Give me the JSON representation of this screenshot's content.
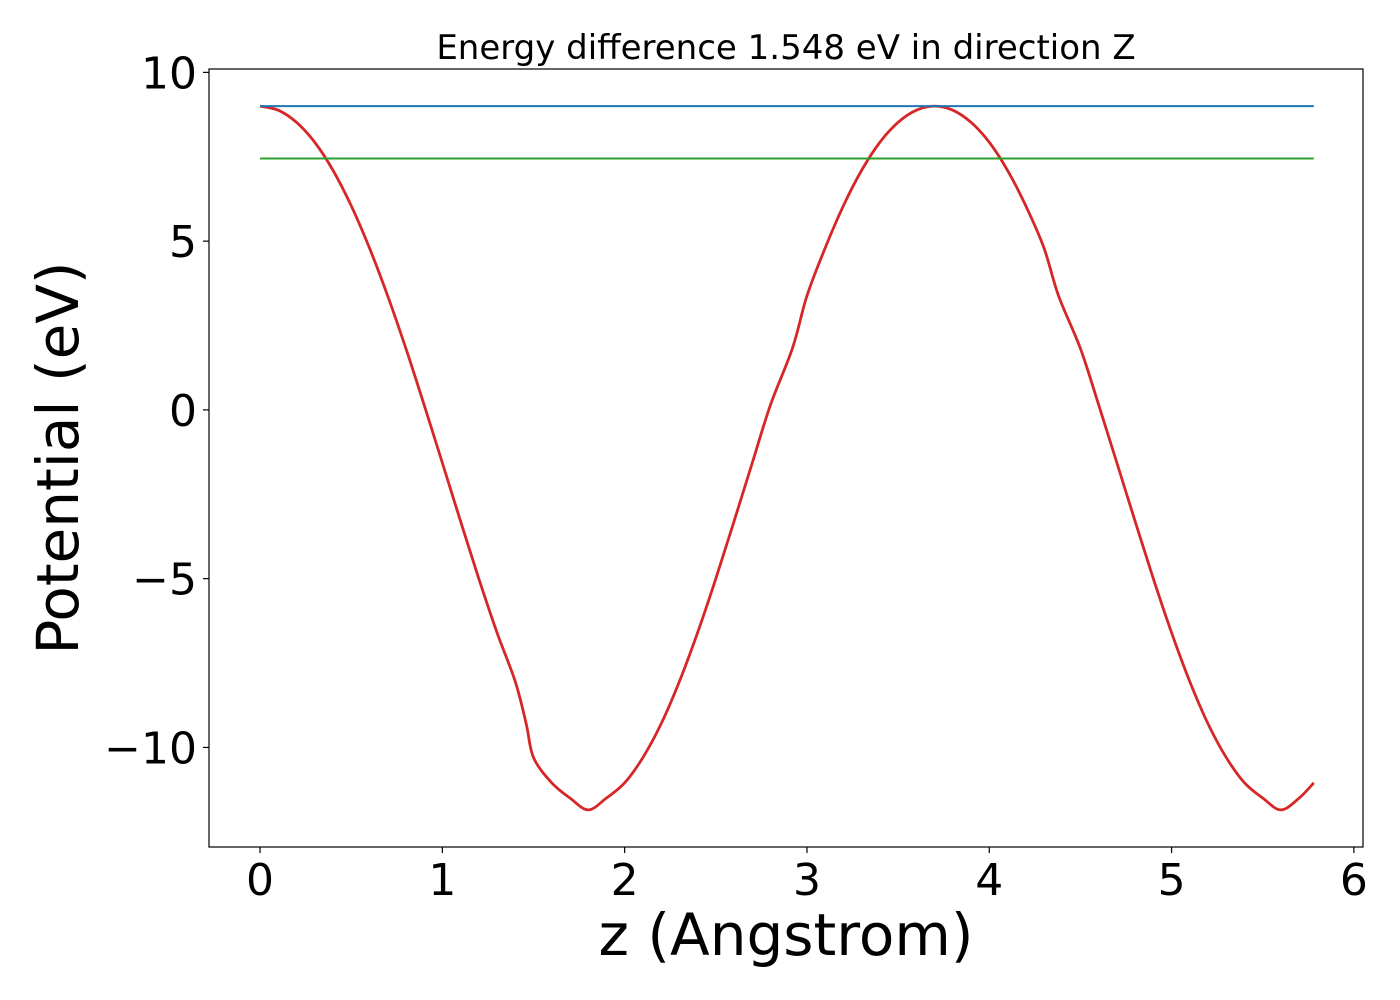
{
  "chart_data": {
    "type": "line",
    "title": "Energy difference 1.548 eV in direction Z",
    "xlabel": "z (Angstrom)",
    "ylabel": "Potential (eV)",
    "xlim": [
      -0.28,
      6.05
    ],
    "ylim": [
      -12.95,
      10.1
    ],
    "x_ticks": [
      0,
      1,
      2,
      3,
      4,
      5,
      6
    ],
    "y_ticks": [
      -10,
      -5,
      0,
      5,
      10
    ],
    "x_tick_labels": [
      "0",
      "1",
      "2",
      "3",
      "4",
      "5",
      "6"
    ],
    "y_tick_labels": [
      "−10",
      "−5",
      "0",
      "5",
      "10"
    ],
    "grid": false,
    "legend": "none",
    "series": [
      {
        "color": "#d62728",
        "x": [
          0.0,
          0.1,
          0.2,
          0.3,
          0.4,
          0.5,
          0.6,
          0.7,
          0.8,
          0.9,
          1.0,
          1.1,
          1.2,
          1.3,
          1.4,
          1.46,
          1.5,
          1.6,
          1.7,
          1.8,
          1.9,
          2.0,
          2.1,
          2.2,
          2.3,
          2.4,
          2.5,
          2.6,
          2.7,
          2.8,
          2.92,
          3.0,
          3.1,
          3.2,
          3.3,
          3.4,
          3.5,
          3.6,
          3.7,
          3.8,
          3.9,
          4.0,
          4.1,
          4.2,
          4.3,
          4.38,
          4.5,
          4.6,
          4.7,
          4.8,
          4.9,
          5.0,
          5.1,
          5.2,
          5.3,
          5.4,
          5.5,
          5.6,
          5.7,
          5.78
        ],
        "y": [
          9.0,
          8.88,
          8.52,
          7.93,
          7.1,
          6.05,
          4.8,
          3.38,
          1.82,
          0.15,
          -1.57,
          -3.3,
          -5.0,
          -6.6,
          -8.05,
          -9.3,
          -10.3,
          -11.05,
          -11.5,
          -11.85,
          -11.5,
          -11.05,
          -10.3,
          -9.3,
          -8.05,
          -6.6,
          -5.0,
          -3.3,
          -1.57,
          0.15,
          1.82,
          3.38,
          4.8,
          6.05,
          7.1,
          7.93,
          8.52,
          8.88,
          9.0,
          8.88,
          8.52,
          7.93,
          7.1,
          6.05,
          4.8,
          3.38,
          1.82,
          0.15,
          -1.57,
          -3.3,
          -5.0,
          -6.6,
          -8.05,
          -9.3,
          -10.3,
          -11.05,
          -11.5,
          -11.85,
          -11.5,
          -11.05
        ]
      },
      {
        "color": "#1f77b4",
        "x": [
          0,
          5.78
        ],
        "y": [
          9.0,
          9.0
        ]
      },
      {
        "color": "#2ca02c",
        "x": [
          0,
          5.78
        ],
        "y": [
          7.45,
          7.45
        ]
      }
    ]
  }
}
